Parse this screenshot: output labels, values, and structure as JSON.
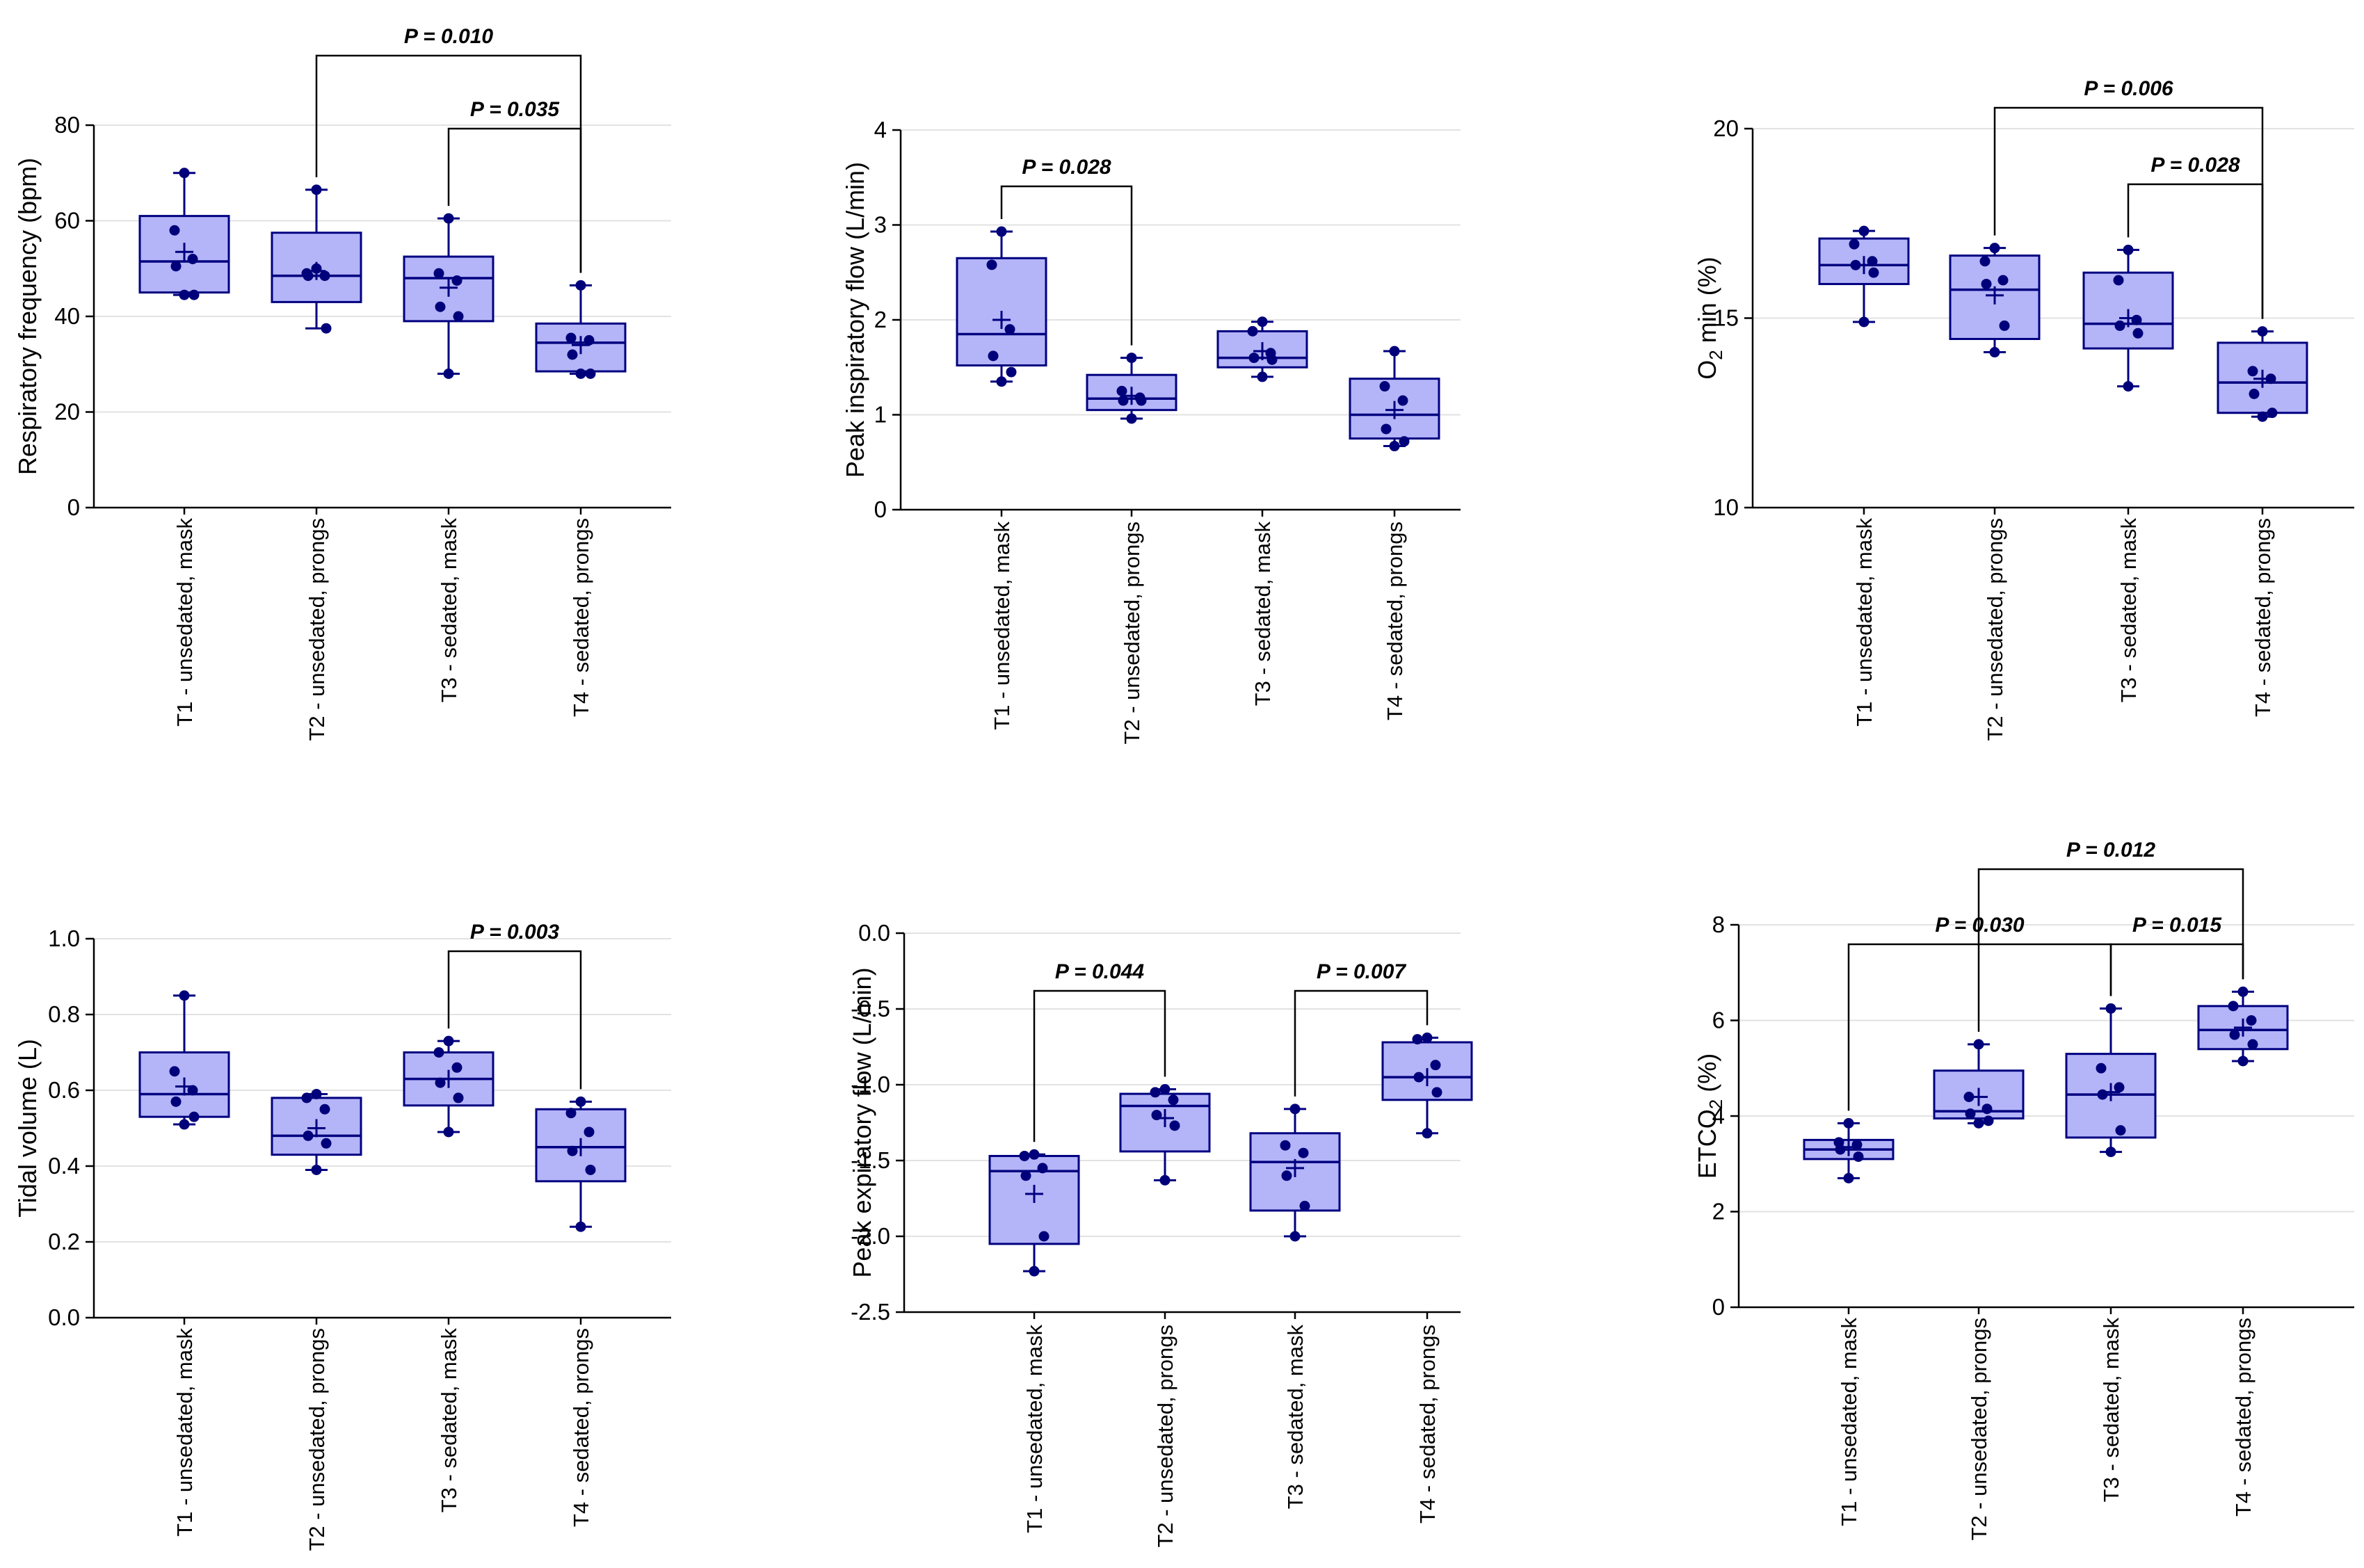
{
  "chart_data": [
    {
      "type": "box",
      "ylabel": "Respiratory frequency (bpm)",
      "ylim": [
        0,
        80
      ],
      "yticks": [
        0,
        20,
        40,
        60,
        80
      ],
      "ytick_labels": [
        "0",
        "20",
        "40",
        "60",
        "80"
      ],
      "categories": [
        "T1 - unsedated, mask",
        "T2 - unsedated, prongs",
        "T3 - sedated, mask",
        "T4 - sedated, prongs"
      ],
      "boxes": [
        {
          "min": 44.5,
          "q1": 45,
          "median": 51.5,
          "q3": 61,
          "max": 70,
          "mean": 53.5,
          "points": [
            70,
            58,
            52,
            50.5,
            44.5,
            44.5
          ]
        },
        {
          "min": 37.5,
          "q1": 43,
          "median": 48.5,
          "q3": 57.5,
          "max": 66.5,
          "mean": 49.5,
          "points": [
            66.5,
            49,
            48.5,
            48.5,
            37.5,
            50
          ]
        },
        {
          "min": 28,
          "q1": 39,
          "median": 48,
          "q3": 52.5,
          "max": 60.5,
          "mean": 46,
          "points": [
            60.5,
            49,
            47.5,
            42,
            40,
            28
          ]
        },
        {
          "min": 28,
          "q1": 28.5,
          "median": 34.5,
          "q3": 38.5,
          "max": 46.5,
          "mean": 34,
          "points": [
            46.5,
            35.5,
            35,
            32,
            28,
            28
          ]
        }
      ],
      "significance": [
        {
          "from": 1,
          "to": 3,
          "label": "P = 0.010"
        },
        {
          "from": 2,
          "to": 3,
          "label": "P = 0.035"
        }
      ]
    },
    {
      "type": "box",
      "ylabel": "Peak inspiratory flow (L/min)",
      "ylim": [
        0,
        4
      ],
      "yticks": [
        0,
        1,
        2,
        3,
        4
      ],
      "ytick_labels": [
        "0",
        "1",
        "2",
        "3",
        "4"
      ],
      "categories": [
        "T1 - unsedated, mask",
        "T2 - unsedated, prongs",
        "T3 - sedated, mask",
        "T4 - sedated, prongs"
      ],
      "boxes": [
        {
          "min": 1.35,
          "q1": 1.52,
          "median": 1.85,
          "q3": 2.65,
          "max": 2.93,
          "mean": 2.0,
          "points": [
            2.93,
            2.58,
            1.9,
            1.62,
            1.45,
            1.35
          ]
        },
        {
          "min": 0.96,
          "q1": 1.05,
          "median": 1.17,
          "q3": 1.42,
          "max": 1.6,
          "mean": 1.2,
          "points": [
            1.6,
            1.25,
            1.18,
            1.15,
            1.15,
            0.96
          ]
        },
        {
          "min": 1.4,
          "q1": 1.5,
          "median": 1.6,
          "q3": 1.88,
          "max": 1.98,
          "mean": 1.67,
          "points": [
            1.98,
            1.88,
            1.65,
            1.6,
            1.58,
            1.4
          ]
        },
        {
          "min": 0.67,
          "q1": 0.75,
          "median": 1.0,
          "q3": 1.38,
          "max": 1.67,
          "mean": 1.05,
          "points": [
            1.67,
            1.3,
            1.15,
            0.85,
            0.72,
            0.67
          ]
        }
      ],
      "significance": [
        {
          "from": 0,
          "to": 1,
          "label": "P = 0.028"
        }
      ]
    },
    {
      "type": "box",
      "ylabel": "O2 min (%)",
      "ylabel_parts": [
        "O",
        "2",
        " min (%)"
      ],
      "ylim": [
        10,
        20
      ],
      "yticks": [
        10,
        15,
        20
      ],
      "ytick_labels": [
        "10",
        "15",
        "20"
      ],
      "categories": [
        "T1 - unsedated, mask",
        "T2 - unsedated, prongs",
        "T3 - sedated, mask",
        "T4 - sedated, prongs"
      ],
      "boxes": [
        {
          "min": 14.9,
          "q1": 15.9,
          "median": 16.4,
          "q3": 17.1,
          "max": 17.3,
          "mean": 16.4,
          "points": [
            17.3,
            16.95,
            16.5,
            16.4,
            16.2,
            14.9
          ]
        },
        {
          "min": 14.1,
          "q1": 14.45,
          "median": 15.75,
          "q3": 16.65,
          "max": 16.85,
          "mean": 15.6,
          "points": [
            16.85,
            16.5,
            16.0,
            15.9,
            14.8,
            14.1
          ]
        },
        {
          "min": 13.2,
          "q1": 14.2,
          "median": 14.85,
          "q3": 16.2,
          "max": 16.8,
          "mean": 15.0,
          "points": [
            16.8,
            16.0,
            14.95,
            14.8,
            14.6,
            13.2
          ]
        },
        {
          "min": 12.4,
          "q1": 12.5,
          "median": 13.3,
          "q3": 14.35,
          "max": 14.65,
          "mean": 13.4,
          "points": [
            14.65,
            13.6,
            13.4,
            13.0,
            12.5,
            12.4
          ]
        }
      ],
      "significance": [
        {
          "from": 1,
          "to": 3,
          "label": "P = 0.006"
        },
        {
          "from": 2,
          "to": 3,
          "label": "P = 0.028"
        }
      ]
    },
    {
      "type": "box",
      "ylabel": "Tidal volume (L)",
      "ylim": [
        0,
        1
      ],
      "yticks": [
        0,
        0.2,
        0.4,
        0.6,
        0.8,
        1.0
      ],
      "ytick_labels": [
        "0.0",
        "0.2",
        "0.4",
        "0.6",
        "0.8",
        "1.0"
      ],
      "categories": [
        "T1 - unsedated, mask",
        "T2 - unsedated, prongs",
        "T3 - sedated, mask",
        "T4 - sedated, prongs"
      ],
      "boxes": [
        {
          "min": 0.51,
          "q1": 0.53,
          "median": 0.59,
          "q3": 0.7,
          "max": 0.85,
          "mean": 0.61,
          "points": [
            0.85,
            0.65,
            0.6,
            0.57,
            0.53,
            0.51
          ]
        },
        {
          "min": 0.39,
          "q1": 0.43,
          "median": 0.48,
          "q3": 0.58,
          "max": 0.59,
          "mean": 0.5,
          "points": [
            0.59,
            0.58,
            0.55,
            0.48,
            0.46,
            0.39
          ]
        },
        {
          "min": 0.49,
          "q1": 0.56,
          "median": 0.63,
          "q3": 0.7,
          "max": 0.73,
          "mean": 0.63,
          "points": [
            0.73,
            0.7,
            0.66,
            0.62,
            0.58,
            0.49
          ]
        },
        {
          "min": 0.24,
          "q1": 0.36,
          "median": 0.45,
          "q3": 0.55,
          "max": 0.57,
          "mean": 0.45,
          "points": [
            0.57,
            0.54,
            0.49,
            0.44,
            0.39,
            0.24
          ]
        }
      ],
      "significance": [
        {
          "from": 2,
          "to": 3,
          "label": "P = 0.003"
        }
      ]
    },
    {
      "type": "box",
      "ylabel": "Peak expiratory flow (L/min)",
      "ylim": [
        -2.5,
        0
      ],
      "yticks": [
        -2.5,
        -2.0,
        -1.5,
        -1.0,
        -0.5,
        0.0
      ],
      "ytick_labels": [
        "-2.5",
        "-2.0",
        "-1.5",
        "-1.0",
        "-0.5",
        "0.0"
      ],
      "categories": [
        "T1 - unsedated, mask",
        "T2 - unsedated, prongs",
        "T3 - sedated, mask",
        "T4 - sedated, prongs"
      ],
      "boxes": [
        {
          "min": -2.23,
          "q1": -2.05,
          "median": -1.57,
          "q3": -1.47,
          "max": -1.46,
          "mean": -1.72,
          "points": [
            -1.46,
            -1.47,
            -1.55,
            -1.6,
            -2.0,
            -2.23
          ]
        },
        {
          "min": -1.63,
          "q1": -1.44,
          "median": -1.14,
          "q3": -1.06,
          "max": -1.03,
          "mean": -1.22,
          "points": [
            -1.03,
            -1.05,
            -1.1,
            -1.2,
            -1.27,
            -1.63
          ]
        },
        {
          "min": -2.0,
          "q1": -1.83,
          "median": -1.51,
          "q3": -1.32,
          "max": -1.16,
          "mean": -1.55,
          "points": [
            -1.16,
            -1.4,
            -1.45,
            -1.6,
            -1.8,
            -2.0
          ]
        },
        {
          "min": -1.32,
          "q1": -1.1,
          "median": -0.95,
          "q3": -0.72,
          "max": -0.69,
          "mean": -0.95,
          "points": [
            -0.69,
            -0.7,
            -0.87,
            -0.95,
            -1.05,
            -1.32
          ]
        }
      ],
      "significance": [
        {
          "from": 0,
          "to": 1,
          "label": "P = 0.044"
        },
        {
          "from": 2,
          "to": 3,
          "label": "P = 0.007"
        }
      ]
    },
    {
      "type": "box",
      "ylabel": "ETCO2 (%)",
      "ylabel_parts": [
        "ETCO",
        "2",
        " (%)"
      ],
      "ylim": [
        0,
        8
      ],
      "yticks": [
        0,
        2,
        4,
        6,
        8
      ],
      "ytick_labels": [
        "0",
        "2",
        "4",
        "6",
        "8"
      ],
      "categories": [
        "T1 - unsedated, mask",
        "T2 - unsedated, prongs",
        "T3 - sedated, mask",
        "T4 - sedated, prongs"
      ],
      "boxes": [
        {
          "min": 2.7,
          "q1": 3.1,
          "median": 3.3,
          "q3": 3.5,
          "max": 3.85,
          "mean": 3.35,
          "points": [
            3.85,
            3.45,
            3.4,
            3.3,
            3.15,
            2.7
          ]
        },
        {
          "min": 3.85,
          "q1": 3.95,
          "median": 4.1,
          "q3": 4.95,
          "max": 5.5,
          "mean": 4.4,
          "points": [
            5.5,
            4.4,
            4.15,
            4.05,
            3.9,
            3.85
          ]
        },
        {
          "min": 3.25,
          "q1": 3.55,
          "median": 4.45,
          "q3": 5.3,
          "max": 6.25,
          "mean": 4.5,
          "points": [
            6.25,
            5.0,
            4.6,
            4.45,
            3.7,
            3.25
          ]
        },
        {
          "min": 5.15,
          "q1": 5.4,
          "median": 5.8,
          "q3": 6.3,
          "max": 6.6,
          "mean": 5.85,
          "points": [
            6.6,
            6.3,
            6.0,
            5.7,
            5.5,
            5.15
          ]
        }
      ],
      "significance": [
        {
          "from": 1,
          "to": 3,
          "label": "P = 0.012"
        },
        {
          "from": 0,
          "to": 2,
          "label": "P = 0.030"
        },
        {
          "from": 2,
          "to": 3,
          "label": "P = 0.015"
        }
      ]
    }
  ]
}
